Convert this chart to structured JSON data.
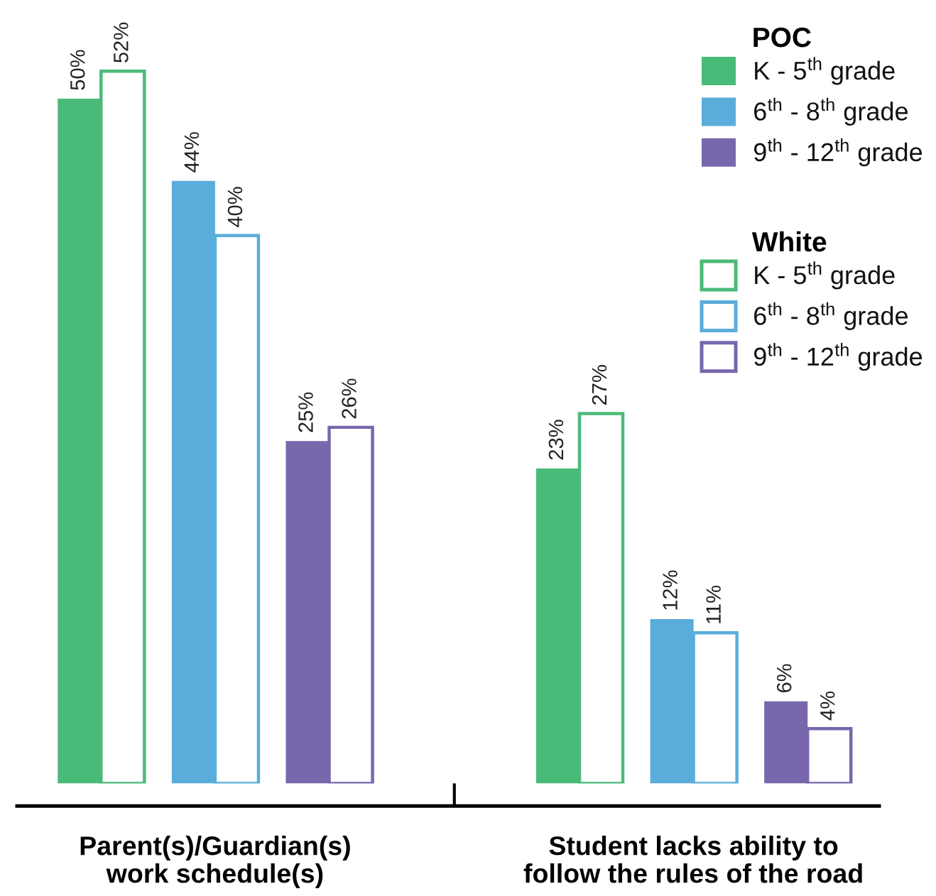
{
  "chart_data": {
    "type": "bar",
    "categories": [
      "Parent(s)/Guardian(s)\nwork schedule(s)",
      "Student lacks ability to\nfollow the rules of the road"
    ],
    "series": [
      {
        "name": "K - 5$^{th}$ grade",
        "color": "#4aba79",
        "values": [
          50,
          23
        ],
        "value_labels": [
          "50%",
          "23%"
        ]
      },
      {
        "name": "6$^{th}$ - 8$^{th}$ grade",
        "color": "#5aaddb",
        "values": [
          44,
          12
        ],
        "value_labels": [
          "44%",
          "12%"
        ]
      },
      {
        "name": "9$^{th}$ - 12$^{th}$ grade",
        "color": "#7867ad",
        "values": [
          25,
          6
        ],
        "value_labels": [
          "25%",
          "6%"
        ]
      },
      {
        "name": "K - 5$^{th}$ grade",
        "color": "#4aba79",
        "values": [
          52,
          27
        ],
        "value_labels": [
          "52%",
          "27%"
        ]
      },
      {
        "name": "6$^{th}$ - 8$^{th}$ grade",
        "color": "#5aaddb",
        "values": [
          40,
          11
        ],
        "value_labels": [
          "40%",
          "11%"
        ]
      },
      {
        "name": "9$^{th}$ - 12$^{th}$ grade",
        "color": "#7867ad",
        "values": [
          26,
          4
        ],
        "value_labels": [
          "26%",
          "4%"
        ]
      }
    ],
    "annotations": [
      "POC",
      "White"
    ],
    "legend": "top right"
  }
}
